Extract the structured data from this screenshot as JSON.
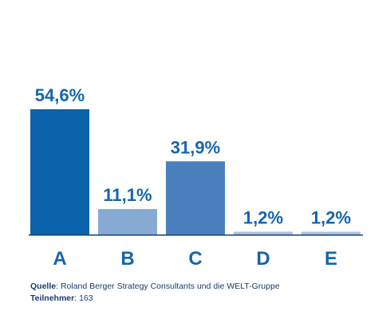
{
  "chart_data": {
    "type": "bar",
    "categories": [
      "A",
      "B",
      "C",
      "D",
      "E"
    ],
    "values": [
      54.6,
      11.1,
      31.9,
      1.2,
      1.2
    ],
    "value_labels": [
      "54,6%",
      "11,1%",
      "31,9%",
      "1,2%",
      "1,2%"
    ],
    "bar_colors": [
      "#0a62ab",
      "#86aad4",
      "#4a80bd",
      "#a9c3e0",
      "#a9c3e0"
    ],
    "label_color": "#1565ae",
    "axis_color": "#1a3c6e",
    "ylim": [
      0,
      60
    ],
    "grid": false,
    "legend": "none"
  },
  "footer": {
    "source_key": "Quelle",
    "source_value": "Roland Berger Strategy Consultants und die WELT-Gruppe",
    "participants_key": "Teilnehmer",
    "participants_value": "163"
  }
}
